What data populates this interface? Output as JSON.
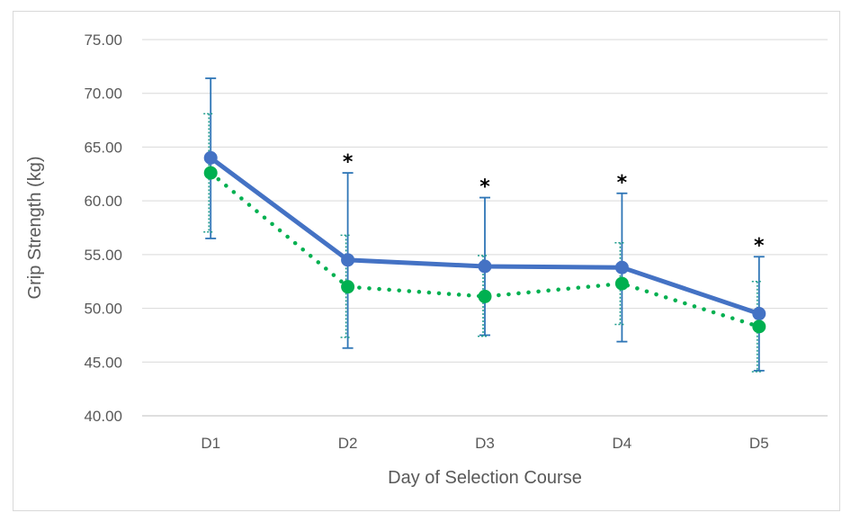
{
  "chart_data": {
    "type": "line",
    "title": "",
    "xlabel": "Day of Selection Course",
    "ylabel": "Grip Strength (kg)",
    "categories": [
      "D1",
      "D2",
      "D3",
      "D4",
      "D5"
    ],
    "ylim": [
      40,
      75
    ],
    "yticks": [
      "40.00",
      "45.00",
      "50.00",
      "55.00",
      "60.00",
      "65.00",
      "70.00",
      "75.00"
    ],
    "grid": true,
    "series": [
      {
        "values": [
          64.0,
          54.5,
          53.9,
          53.8,
          49.5
        ],
        "error_low": [
          56.5,
          46.3,
          47.5,
          46.9,
          44.2
        ],
        "error_high": [
          71.4,
          62.6,
          60.3,
          60.7,
          54.8
        ],
        "color": "#4472c4",
        "error_color": "#2e75b6",
        "style": "solid"
      },
      {
        "values": [
          62.6,
          52.0,
          51.1,
          52.3,
          48.3
        ],
        "error_low": [
          57.1,
          47.3,
          47.4,
          48.5,
          44.1
        ],
        "error_high": [
          68.1,
          56.8,
          54.9,
          56.1,
          52.5
        ],
        "color": "#00b050",
        "error_color": "#1e9c8c",
        "style": "dotted"
      }
    ],
    "annotations": [
      {
        "category": "D2",
        "text": "*"
      },
      {
        "category": "D3",
        "text": "*"
      },
      {
        "category": "D4",
        "text": "*"
      },
      {
        "category": "D5",
        "text": "*"
      }
    ]
  }
}
